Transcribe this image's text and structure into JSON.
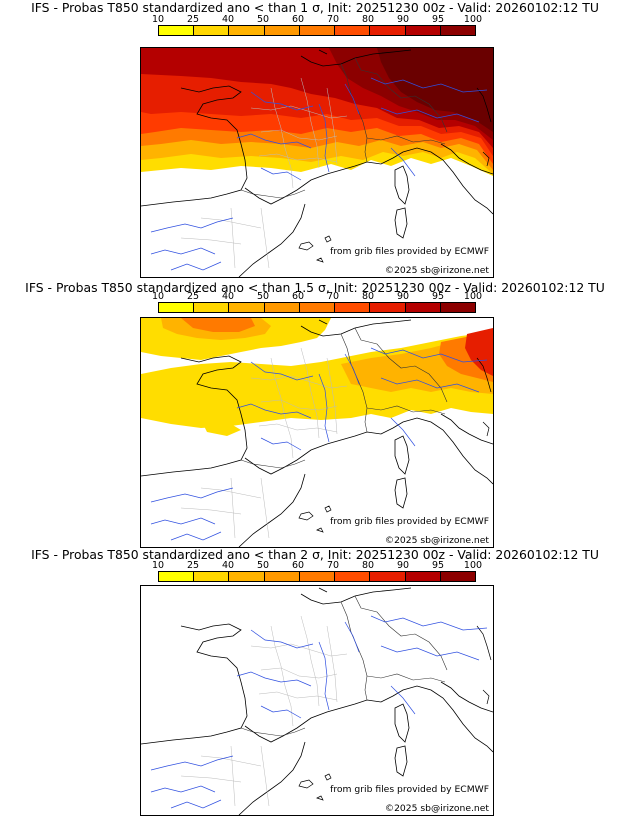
{
  "colorbar": {
    "labels": [
      "10",
      "25",
      "40",
      "50",
      "60",
      "70",
      "80",
      "90",
      "95",
      "100"
    ],
    "colors": [
      "#ffff00",
      "#ffd700",
      "#ffb300",
      "#ff9900",
      "#ff7a00",
      "#ff4d00",
      "#e61e00",
      "#b40000",
      "#8c0000",
      "#5a0000"
    ]
  },
  "panels": [
    {
      "title": "IFS - Probas T850  standardized ano < than 1 σ, Init: 20251230 00z - Valid: 20260102:12 TU",
      "credit_source": "from grib files provided by ECMWF",
      "credit_copyright": "©2025 sb@irizone.net"
    },
    {
      "title": "IFS - Probas T850  standardized ano < than 1.5 σ, Init: 20251230 00z - Valid: 20260102:12 TU",
      "credit_source": "from grib files provided by ECMWF",
      "credit_copyright": "©2025 sb@irizone.net"
    },
    {
      "title": "IFS - Probas T850  standardized ano < than 2 σ, Init: 20251230 00z - Valid: 20260102:12 TU",
      "credit_source": "from grib files provided by ECMWF",
      "credit_copyright": "©2025 sb@irizone.net"
    }
  ]
}
